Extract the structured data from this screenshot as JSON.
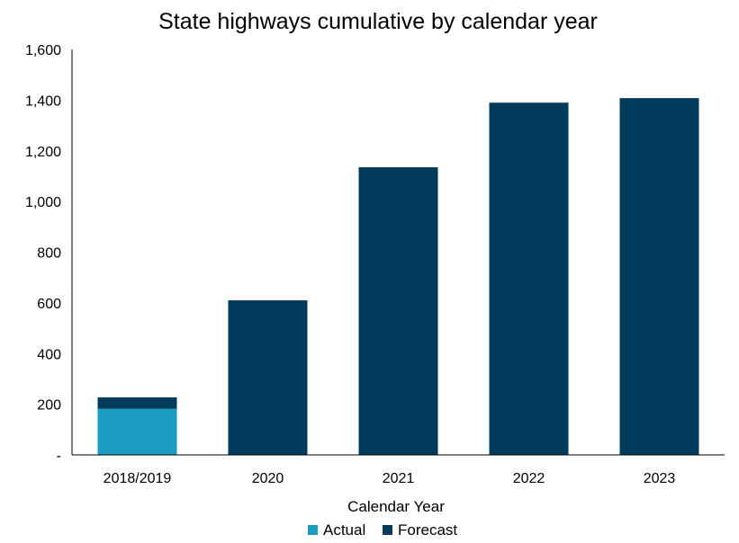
{
  "chart_data": {
    "type": "bar",
    "stacked": true,
    "title": "State highways cumulative by calendar year",
    "xlabel": "Calendar Year",
    "ylabel": "",
    "categories": [
      "2018/2019",
      "2020",
      "2021",
      "2022",
      "2023"
    ],
    "series": [
      {
        "name": "Actual",
        "color": "#1a9bc2",
        "values": [
          182,
          0,
          0,
          0,
          0
        ]
      },
      {
        "name": "Forecast",
        "color": "#003b5c",
        "values": [
          45,
          610,
          1135,
          1390,
          1408
        ]
      }
    ],
    "ylim": [
      0,
      1600
    ],
    "yticks": [
      0,
      200,
      400,
      600,
      800,
      1000,
      1200,
      1400,
      1600
    ],
    "ytick_labels": [
      "-",
      "200",
      "400",
      "600",
      "800",
      "1,000",
      "1,200",
      "1,400",
      "1,600"
    ],
    "grid": false,
    "legend_position": "bottom-center"
  }
}
